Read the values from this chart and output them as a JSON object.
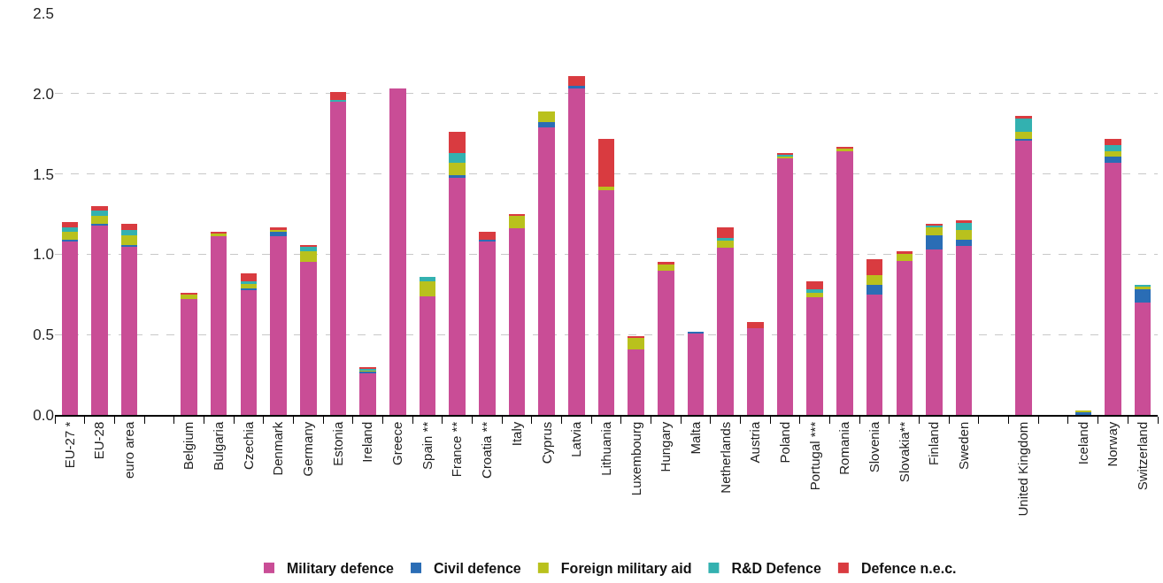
{
  "chart_data": {
    "type": "bar",
    "stacked": true,
    "categories": [
      "EU-27 *",
      "EU-28",
      "euro area",
      null,
      "Belgium",
      "Bulgaria",
      "Czechia",
      "Denmark",
      "Germany",
      "Estonia",
      "Ireland",
      "Greece",
      "Spain **",
      "France **",
      "Croatia **",
      "Italy",
      "Cyprus",
      "Latvia",
      "Lithuania",
      "Luxembourg",
      "Hungary",
      "Malta",
      "Netherlands",
      "Austria",
      "Poland",
      "Portugal ***",
      "Romania",
      "Slovenia",
      "Slovakia**",
      "Finland",
      "Sweden",
      null,
      "United Kingdom",
      null,
      "Iceland",
      "Norway",
      "Switzerland"
    ],
    "series": [
      {
        "name": "Military defence",
        "color": "#c94d96",
        "values": [
          1.08,
          1.18,
          1.05,
          null,
          0.72,
          1.11,
          0.78,
          1.11,
          0.95,
          1.95,
          0.26,
          2.03,
          0.74,
          1.48,
          1.08,
          1.16,
          1.79,
          2.03,
          1.4,
          0.41,
          0.9,
          0.51,
          1.04,
          0.54,
          1.6,
          0.73,
          1.64,
          0.75,
          0.96,
          1.03,
          1.05,
          null,
          1.71,
          null,
          null,
          1.57,
          0.7
        ]
      },
      {
        "name": "Civil defence",
        "color": "#2a6db5",
        "values": [
          0.01,
          0.01,
          0.01,
          null,
          0.0,
          0.0,
          0.01,
          0.03,
          0.0,
          0.0,
          0.01,
          0.0,
          0.0,
          0.01,
          0.01,
          0.0,
          0.03,
          0.02,
          0.0,
          0.0,
          0.0,
          0.01,
          0.0,
          0.0,
          0.0,
          0.0,
          0.0,
          0.06,
          0.0,
          0.09,
          0.04,
          null,
          0.01,
          null,
          0.02,
          0.04,
          0.08
        ]
      },
      {
        "name": "Foreign military aid",
        "color": "#b9c11d",
        "values": [
          0.05,
          0.05,
          0.06,
          null,
          0.03,
          0.02,
          0.03,
          0.01,
          0.07,
          0.0,
          0.01,
          0.0,
          0.09,
          0.08,
          0.0,
          0.08,
          0.07,
          0.0,
          0.02,
          0.07,
          0.04,
          0.0,
          0.05,
          0.0,
          0.01,
          0.03,
          0.02,
          0.06,
          0.04,
          0.05,
          0.06,
          null,
          0.04,
          null,
          0.01,
          0.03,
          0.02
        ]
      },
      {
        "name": "R&D Defence",
        "color": "#33b1b0",
        "values": [
          0.03,
          0.03,
          0.03,
          null,
          0.0,
          0.0,
          0.01,
          0.0,
          0.03,
          0.01,
          0.01,
          0.0,
          0.03,
          0.06,
          0.0,
          0.0,
          0.0,
          0.0,
          0.0,
          0.0,
          0.0,
          0.0,
          0.01,
          0.0,
          0.01,
          0.02,
          0.0,
          0.0,
          0.0,
          0.01,
          0.05,
          null,
          0.09,
          null,
          0.0,
          0.04,
          0.01
        ]
      },
      {
        "name": "Defence n.e.c.",
        "color": "#d93b40",
        "values": [
          0.03,
          0.03,
          0.04,
          null,
          0.01,
          0.01,
          0.05,
          0.02,
          0.01,
          0.05,
          0.01,
          0.0,
          0.0,
          0.13,
          0.05,
          0.01,
          0.0,
          0.06,
          0.3,
          0.01,
          0.01,
          0.0,
          0.07,
          0.04,
          0.01,
          0.05,
          0.01,
          0.1,
          0.02,
          0.01,
          0.01,
          null,
          0.01,
          null,
          0.0,
          0.04,
          0.0
        ]
      }
    ],
    "ylim": [
      0,
      2.5
    ],
    "yticks": [
      {
        "value": 0,
        "label": "0.0"
      },
      {
        "value": 0.5,
        "label": "0.5"
      },
      {
        "value": 1,
        "label": "1.0"
      },
      {
        "value": 1.5,
        "label": "1.5"
      },
      {
        "value": 2,
        "label": "2.0"
      },
      {
        "value": 2.5,
        "label": "2.5"
      }
    ],
    "grid": "y",
    "legend": "bottom"
  }
}
